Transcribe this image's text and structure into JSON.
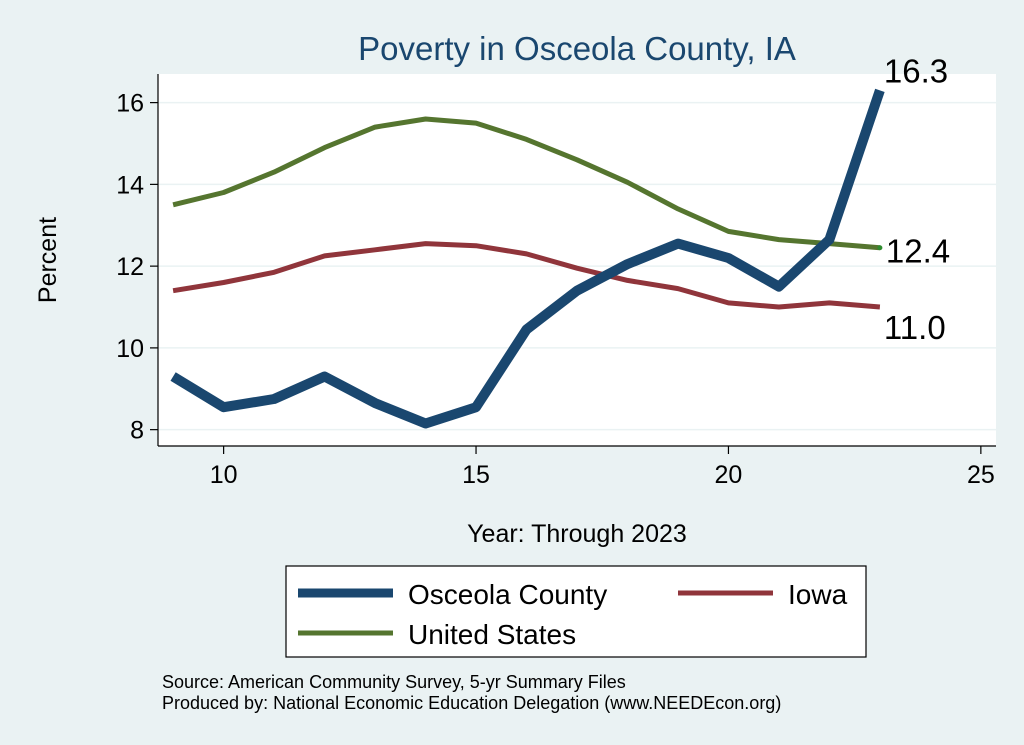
{
  "chart_data": {
    "type": "line",
    "title": "Poverty in Osceola County, IA",
    "xlabel": "Year: Through 2023",
    "ylabel": "Percent",
    "xlim": [
      8.7,
      25.3
    ],
    "ylim": [
      7.6,
      16.7
    ],
    "xticks": [
      10,
      15,
      20,
      25
    ],
    "yticks": [
      8,
      10,
      12,
      14,
      16
    ],
    "grid": "horizontal",
    "legend_position": "bottom",
    "series": [
      {
        "name": "Osceola County",
        "color": "#1a476f",
        "x": [
          9,
          10,
          11,
          12,
          13,
          14,
          15,
          16,
          17,
          18,
          19,
          20,
          21,
          22,
          23
        ],
        "y": [
          9.3,
          8.55,
          8.75,
          9.3,
          8.65,
          8.15,
          8.55,
          10.45,
          11.4,
          12.05,
          12.55,
          12.2,
          11.5,
          12.65,
          16.3
        ],
        "end_label": "16.3"
      },
      {
        "name": "Iowa",
        "color": "#90353b",
        "x": [
          9,
          10,
          11,
          12,
          13,
          14,
          15,
          16,
          17,
          18,
          19,
          20,
          21,
          22,
          23
        ],
        "y": [
          11.4,
          11.6,
          11.85,
          12.25,
          12.4,
          12.55,
          12.5,
          12.3,
          11.95,
          11.65,
          11.45,
          11.1,
          11.0,
          11.1,
          11.0
        ],
        "end_label": "11.0"
      },
      {
        "name": "United States",
        "color": "#55752f",
        "x": [
          9,
          10,
          11,
          12,
          13,
          14,
          15,
          16,
          17,
          18,
          19,
          20,
          21,
          22,
          23
        ],
        "y": [
          13.5,
          13.8,
          14.3,
          14.9,
          15.4,
          15.6,
          15.5,
          15.1,
          14.6,
          14.05,
          13.4,
          12.85,
          12.65,
          12.55,
          12.45
        ],
        "end_label": "12.4"
      }
    ]
  },
  "source_note": "Source: American Community Survey, 5-yr Summary Files",
  "producer_note": "Produced by: National Economic Education Delegation (www.NEEDEcon.org)"
}
